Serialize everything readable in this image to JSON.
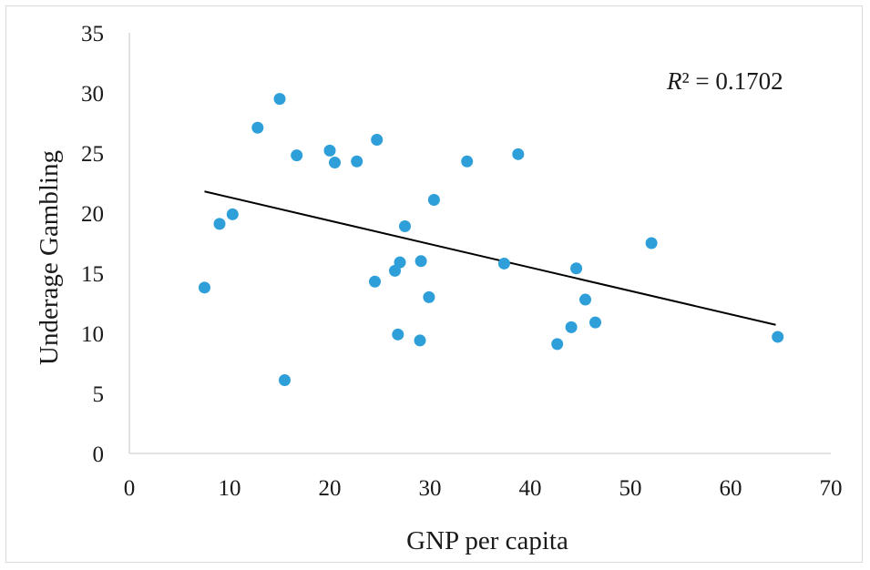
{
  "chart_data": {
    "type": "scatter",
    "xlabel": "GNP per capita",
    "ylabel": "Underage Gambling",
    "xlim": [
      0,
      70
    ],
    "ylim": [
      0,
      35
    ],
    "x_ticks": [
      "0",
      "10",
      "20",
      "30",
      "40",
      "50",
      "60",
      "70"
    ],
    "y_ticks": [
      "0",
      "5",
      "10",
      "15",
      "20",
      "25",
      "30",
      "35"
    ],
    "annotation": {
      "italic": "R",
      "text": "² = 0.1702"
    },
    "grid": false,
    "legend": "none",
    "marker_color": "#2e9fd9",
    "trendline_color": "#000000",
    "trendline": {
      "x": [
        7.5,
        64.5
      ],
      "y": [
        21.8,
        10.7
      ]
    },
    "points": [
      {
        "x": 7.5,
        "y": 13.8
      },
      {
        "x": 9.0,
        "y": 19.1
      },
      {
        "x": 10.3,
        "y": 19.9
      },
      {
        "x": 12.8,
        "y": 27.1
      },
      {
        "x": 15.0,
        "y": 29.5
      },
      {
        "x": 15.5,
        "y": 6.1
      },
      {
        "x": 16.7,
        "y": 24.8
      },
      {
        "x": 20.0,
        "y": 25.2
      },
      {
        "x": 20.5,
        "y": 24.2
      },
      {
        "x": 22.7,
        "y": 24.3
      },
      {
        "x": 24.5,
        "y": 14.3
      },
      {
        "x": 24.7,
        "y": 26.1
      },
      {
        "x": 26.5,
        "y": 15.2
      },
      {
        "x": 26.8,
        "y": 9.9
      },
      {
        "x": 27.0,
        "y": 15.9
      },
      {
        "x": 27.5,
        "y": 18.9
      },
      {
        "x": 29.0,
        "y": 9.4
      },
      {
        "x": 29.1,
        "y": 16.0
      },
      {
        "x": 29.9,
        "y": 13.0
      },
      {
        "x": 30.4,
        "y": 21.1
      },
      {
        "x": 33.7,
        "y": 24.3
      },
      {
        "x": 37.4,
        "y": 15.8
      },
      {
        "x": 38.8,
        "y": 24.9
      },
      {
        "x": 42.7,
        "y": 9.1
      },
      {
        "x": 44.1,
        "y": 10.5
      },
      {
        "x": 44.6,
        "y": 15.4
      },
      {
        "x": 45.5,
        "y": 12.8
      },
      {
        "x": 46.5,
        "y": 10.9
      },
      {
        "x": 52.1,
        "y": 17.5
      },
      {
        "x": 64.7,
        "y": 9.7
      }
    ]
  }
}
